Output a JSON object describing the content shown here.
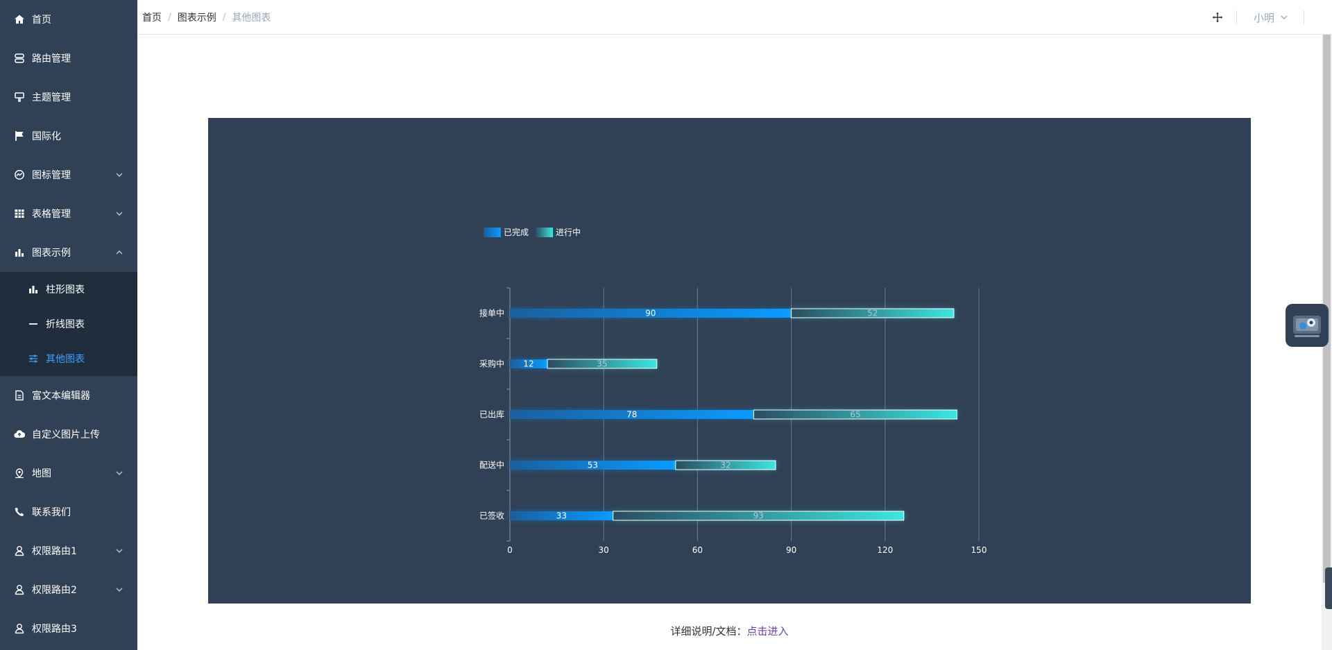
{
  "sidebar": {
    "items": [
      {
        "label": "首页"
      },
      {
        "label": "路由管理"
      },
      {
        "label": "主题管理"
      },
      {
        "label": "国际化"
      },
      {
        "label": "图标管理"
      },
      {
        "label": "表格管理"
      },
      {
        "label": "图表示例"
      },
      {
        "label": "富文本编辑器"
      },
      {
        "label": "自定义图片上传"
      },
      {
        "label": "地图"
      },
      {
        "label": "联系我们"
      },
      {
        "label": "权限路由1"
      },
      {
        "label": "权限路由2"
      },
      {
        "label": "权限路由3"
      }
    ],
    "chart_sub": [
      {
        "label": "柱形图表"
      },
      {
        "label": "折线图表"
      },
      {
        "label": "其他图表"
      }
    ]
  },
  "breadcrumb": {
    "home": "首页",
    "parent": "图表示例",
    "current": "其他图表",
    "separator": "/"
  },
  "header": {
    "username": "小明"
  },
  "doc": {
    "label": "详细说明/文档：",
    "link": "点击进入"
  },
  "colors": {
    "sidebar_bg": "#304156",
    "active": "#409eff",
    "bar_done": "#0a9bff",
    "bar_progress": "#3ce6e0"
  },
  "chart_data": {
    "type": "bar",
    "orientation": "horizontal",
    "stacked": true,
    "categories": [
      "接单中",
      "采购中",
      "已出库",
      "配送中",
      "已签收"
    ],
    "series": [
      {
        "name": "已完成",
        "values": [
          90,
          12,
          78,
          53,
          33
        ]
      },
      {
        "name": "进行中",
        "values": [
          52,
          35,
          65,
          32,
          93
        ]
      }
    ],
    "x_ticks": [
      0,
      30,
      60,
      90,
      120,
      150
    ],
    "xlim": [
      0,
      150
    ],
    "grid": true,
    "legend_position": "top-left",
    "data_labels": true
  }
}
